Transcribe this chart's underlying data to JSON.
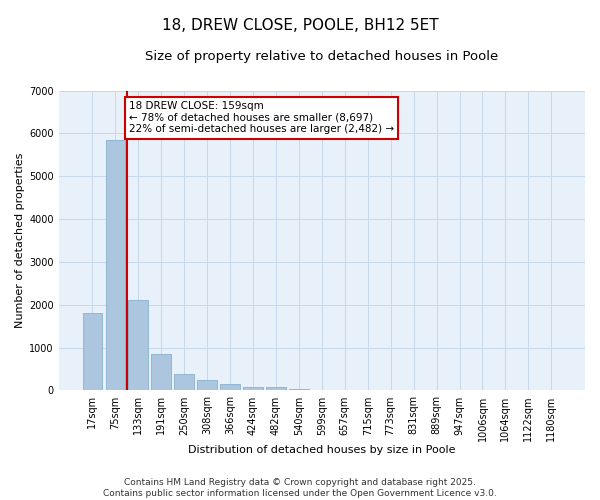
{
  "title": "18, DREW CLOSE, POOLE, BH12 5ET",
  "subtitle": "Size of property relative to detached houses in Poole",
  "xlabel": "Distribution of detached houses by size in Poole",
  "ylabel": "Number of detached properties",
  "categories": [
    "17sqm",
    "75sqm",
    "133sqm",
    "191sqm",
    "250sqm",
    "308sqm",
    "366sqm",
    "424sqm",
    "482sqm",
    "540sqm",
    "599sqm",
    "657sqm",
    "715sqm",
    "773sqm",
    "831sqm",
    "889sqm",
    "947sqm",
    "1006sqm",
    "1064sqm",
    "1122sqm",
    "1180sqm"
  ],
  "values": [
    1800,
    5850,
    2100,
    850,
    380,
    240,
    140,
    90,
    80,
    30,
    10,
    5,
    3,
    2,
    1,
    1,
    0,
    0,
    0,
    0,
    0
  ],
  "bar_color": "#adc6e0",
  "bar_edge_color": "#7aaac8",
  "vline_x_index": 2,
  "vline_color": "#cc0000",
  "annotation_text": "18 DREW CLOSE: 159sqm\n← 78% of detached houses are smaller (8,697)\n22% of semi-detached houses are larger (2,482) →",
  "annotation_box_color": "#cc0000",
  "ylim": [
    0,
    7000
  ],
  "yticks": [
    0,
    1000,
    2000,
    3000,
    4000,
    5000,
    6000,
    7000
  ],
  "grid_color": "#c8d8ec",
  "background_color": "#e8f0fa",
  "footer_line1": "Contains HM Land Registry data © Crown copyright and database right 2025.",
  "footer_line2": "Contains public sector information licensed under the Open Government Licence v3.0.",
  "title_fontsize": 11,
  "subtitle_fontsize": 9.5,
  "axis_label_fontsize": 8,
  "tick_fontsize": 7,
  "annotation_fontsize": 7.5,
  "footer_fontsize": 6.5
}
